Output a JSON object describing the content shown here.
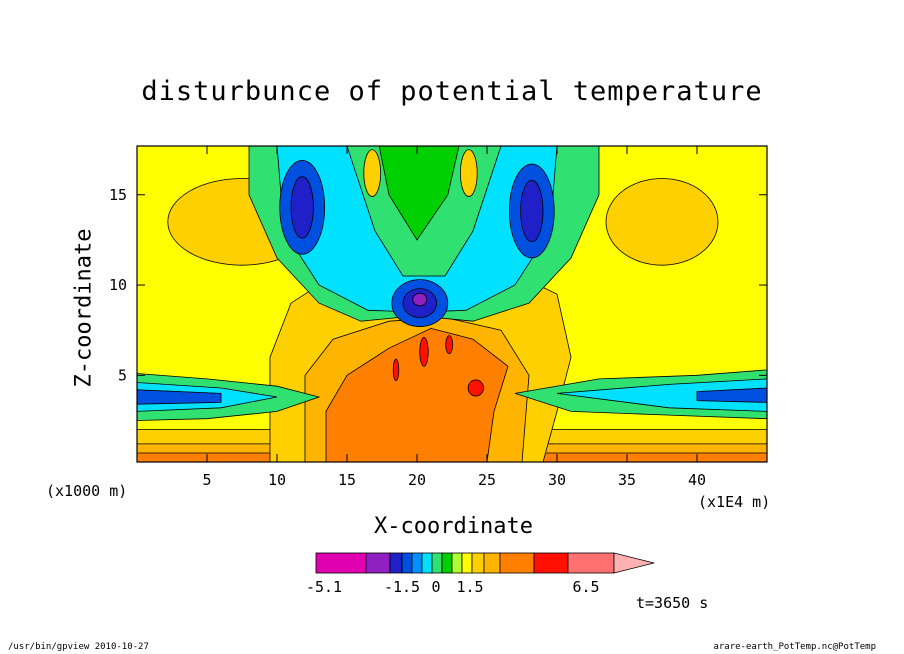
{
  "chart_data": {
    "type": "heatmap",
    "title": "disturbunce of potential temperature",
    "xlabel": "X-coordinate",
    "ylabel": "Z-coordinate",
    "x_unit_left": "(x1000 m)",
    "x_unit_right": "(x1E4 m)",
    "xlim": [
      0,
      45
    ],
    "ylim": [
      0.2,
      17.7
    ],
    "x_ticks": [
      5,
      10,
      15,
      20,
      25,
      30,
      35,
      40
    ],
    "y_ticks": [
      5,
      10,
      15
    ],
    "background_level": "0",
    "colorbar": {
      "colors": [
        "#e000b0",
        "#9020c0",
        "#2020c8",
        "#0050e0",
        "#0090ff",
        "#00e0ff",
        "#30e070",
        "#00d000",
        "#b0ff30",
        "#ffff00",
        "#ffd000",
        "#ffb400",
        "#ff8000",
        "#ff1000",
        "#ff7070",
        "#ffb0b0"
      ],
      "labels": [
        "-5.1",
        "-1.5",
        "0",
        "1.5",
        "6.5"
      ],
      "extends": "max"
    },
    "time_label": "t=3650 s"
  },
  "footer_left": "/usr/bin/gpview   2010-10-27",
  "footer_right": "arare-earth_PotTemp.nc@PotTemp"
}
